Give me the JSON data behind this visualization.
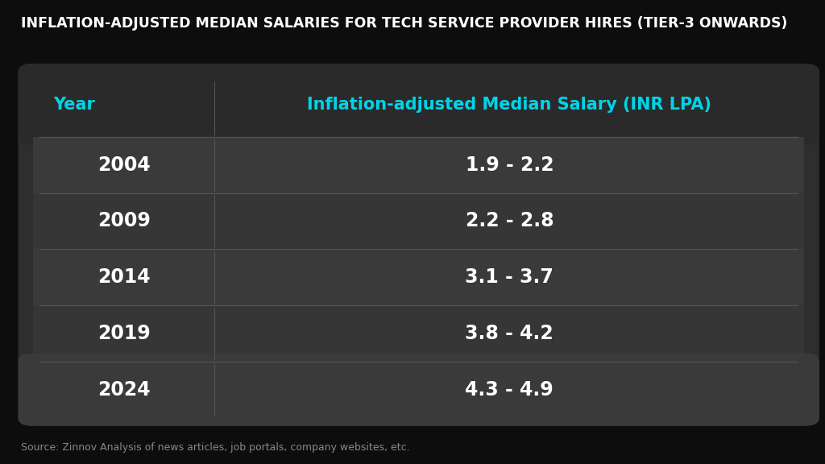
{
  "title": "INFLATION-ADJUSTED MEDIAN SALARIES FOR TECH SERVICE PROVIDER HIRES (TIER-3 ONWARDS)",
  "header_col1": "Year",
  "header_col2": "Inflation-adjusted Median Salary (INR LPA)",
  "rows": [
    {
      "year": "2004",
      "salary": "1.9 - 2.2"
    },
    {
      "year": "2009",
      "salary": "2.2 - 2.8"
    },
    {
      "year": "2014",
      "salary": "3.1 - 3.7"
    },
    {
      "year": "2019",
      "salary": "3.8 - 4.2"
    },
    {
      "year": "2024",
      "salary": "4.3 - 4.9"
    }
  ],
  "source_text": "Source: Zinnov Analysis of news articles, job portals, company websites, etc.",
  "bg_dark": "#0d0d0d",
  "table_bg": "#2e2e2e",
  "header_bg": "#2a2a2a",
  "row_bg_even": "#3a3a3a",
  "row_bg_odd": "#363636",
  "header_text_color": "#00d4e8",
  "year_text_color": "#ffffff",
  "salary_text_color": "#ffffff",
  "title_color": "#ffffff",
  "source_color": "#888888",
  "divider_color": "#555555",
  "title_fontsize": 12.5,
  "header_fontsize": 15,
  "row_fontsize": 17,
  "source_fontsize": 9
}
